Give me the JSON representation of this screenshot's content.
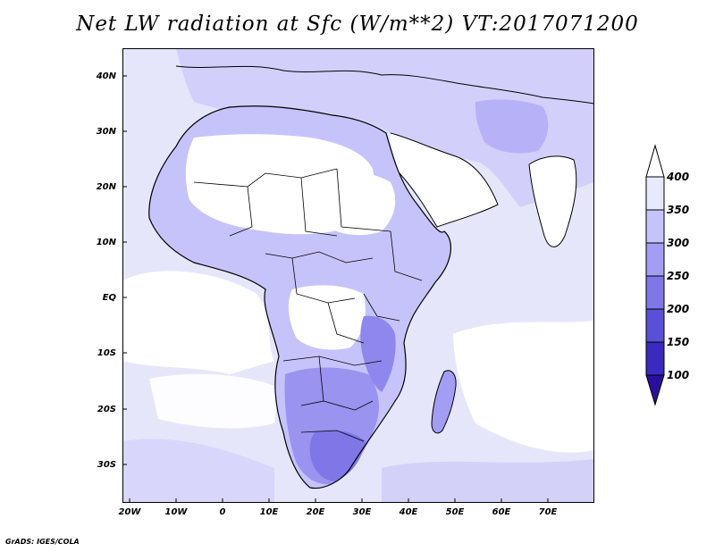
{
  "title": "Net LW radiation at Sfc (W/m**2) VT:2017071200",
  "credit": "GrADS: IGES/COLA",
  "latitude_labels": [
    "40N",
    "30N",
    "20N",
    "10N",
    "EQ",
    "10S",
    "20S",
    "30S"
  ],
  "longitude_labels": [
    "20W",
    "10W",
    "0",
    "10E",
    "20E",
    "30E",
    "40E",
    "50E",
    "60E",
    "70E"
  ],
  "colorbar": {
    "levels": [
      "400",
      "350",
      "300",
      "250",
      "200",
      "150",
      "100"
    ],
    "colors": [
      "#ffffff",
      "#e8e8ff",
      "#c6c3fb",
      "#a39df4",
      "#7f77e8",
      "#5a4fd8",
      "#3a2ac0",
      "#2a0f9e"
    ]
  },
  "map": {
    "ocean_color": "#e6e6fb",
    "land_color": "#c6c3fb",
    "clear_color": "#ffffff",
    "deep_color": "#8f88ec"
  }
}
